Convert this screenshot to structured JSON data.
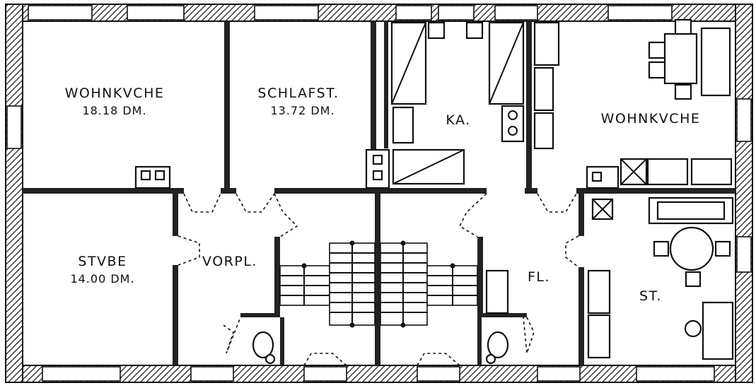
{
  "plan": {
    "rooms": [
      {
        "name": "WOHNKÜCHE",
        "display": "WOHNKVCHE",
        "area": "18.18 DM."
      },
      {
        "name": "SCHLAFST.",
        "display": "SCHLAFST.",
        "area": "13.72 DM."
      },
      {
        "name": "KA.",
        "display": "KA.",
        "area": ""
      },
      {
        "name": "WOHNKÜCHE",
        "display": "WOHNKVCHE",
        "area": ""
      },
      {
        "name": "STUBE",
        "display": "STVBE",
        "area": "14.00 DM."
      },
      {
        "name": "VORPL.",
        "display": "VORPL.",
        "area": ""
      },
      {
        "name": "FL.",
        "display": "FL.",
        "area": ""
      },
      {
        "name": "ST.",
        "display": "ST.",
        "area": ""
      }
    ]
  }
}
